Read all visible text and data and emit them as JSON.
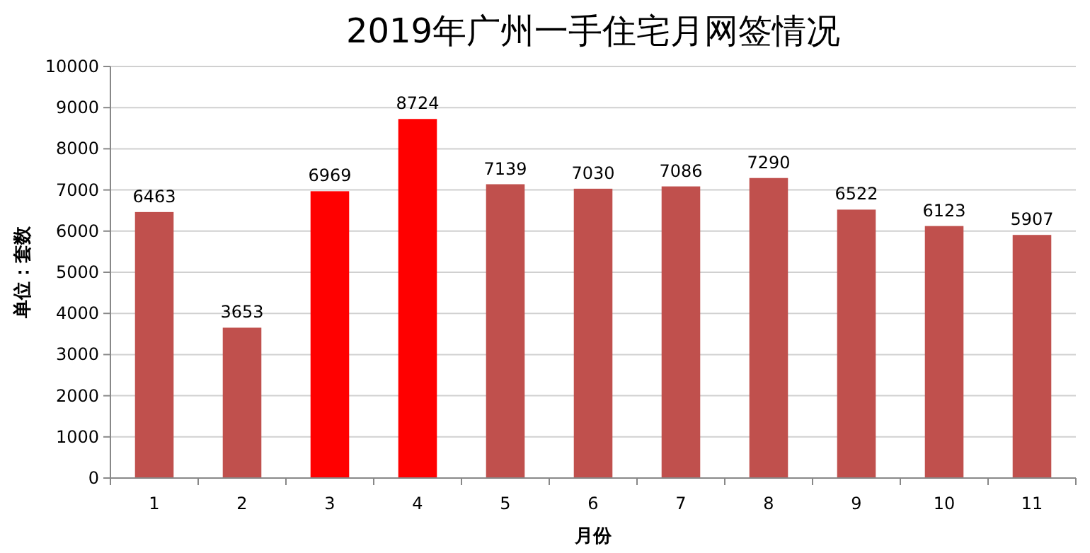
{
  "chart_data": {
    "type": "bar",
    "title": "2019年广州一手住宅月网签情况",
    "xlabel": "月份",
    "ylabel": "单位：套数",
    "categories": [
      "1",
      "2",
      "3",
      "4",
      "5",
      "6",
      "7",
      "8",
      "9",
      "10",
      "11"
    ],
    "values": [
      6463,
      3653,
      6969,
      8724,
      7139,
      7030,
      7086,
      7290,
      6522,
      6123,
      5907
    ],
    "colors": [
      "#c0504d",
      "#c0504d",
      "#ff0000",
      "#ff0000",
      "#c0504d",
      "#c0504d",
      "#c0504d",
      "#c0504d",
      "#c0504d",
      "#c0504d",
      "#c0504d"
    ],
    "ylim": [
      0,
      10000
    ],
    "yticks": [
      0,
      1000,
      2000,
      3000,
      4000,
      5000,
      6000,
      7000,
      8000,
      9000,
      10000
    ],
    "grid": "y",
    "data_labels": true
  }
}
